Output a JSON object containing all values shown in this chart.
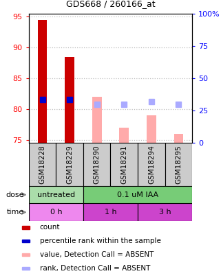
{
  "title": "GDS668 / 260166_at",
  "samples": [
    "GSM18228",
    "GSM18229",
    "GSM18290",
    "GSM18291",
    "GSM18294",
    "GSM18295"
  ],
  "ylim_left": [
    74.5,
    95.5
  ],
  "ylim_right": [
    0,
    100
  ],
  "yticks_left": [
    75,
    80,
    85,
    90,
    95
  ],
  "yticks_right": [
    0,
    25,
    50,
    75,
    100
  ],
  "ytick_labels_right": [
    "0",
    "25",
    "50",
    "75",
    "100%"
  ],
  "bar_values_present": [
    94.5,
    88.5
  ],
  "bar_values_present_indices": [
    0,
    1
  ],
  "bar_values_absent": [
    82.0,
    77.0,
    79.0,
    76.0
  ],
  "bar_values_absent_indices": [
    2,
    3,
    4,
    5
  ],
  "rank_values_present": [
    81.5,
    81.5
  ],
  "rank_values_present_indices": [
    0,
    1
  ],
  "rank_values_absent": [
    80.8,
    80.8,
    81.2,
    80.8
  ],
  "rank_values_absent_indices": [
    2,
    3,
    4,
    5
  ],
  "bar_bottom": 74.5,
  "color_bar_present": "#cc0000",
  "color_bar_absent": "#ffaaaa",
  "color_rank_present": "#0000cc",
  "color_rank_absent": "#aaaaff",
  "dose_labels": [
    {
      "text": "untreated",
      "start": 0,
      "end": 2,
      "color": "#aaddaa"
    },
    {
      "text": "0.1 uM IAA",
      "start": 2,
      "end": 6,
      "color": "#77cc77"
    }
  ],
  "time_labels": [
    {
      "text": "0 h",
      "start": 0,
      "end": 2,
      "color": "#ee88ee"
    },
    {
      "text": "1 h",
      "start": 2,
      "end": 4,
      "color": "#cc44cc"
    },
    {
      "text": "3 h",
      "start": 4,
      "end": 6,
      "color": "#cc44cc"
    }
  ],
  "legend_items": [
    {
      "label": "count",
      "color": "#cc0000"
    },
    {
      "label": "percentile rank within the sample",
      "color": "#0000cc"
    },
    {
      "label": "value, Detection Call = ABSENT",
      "color": "#ffaaaa"
    },
    {
      "label": "rank, Detection Call = ABSENT",
      "color": "#aaaaff"
    }
  ],
  "dose_arrow_label": "dose",
  "time_arrow_label": "time",
  "bar_width": 0.35,
  "rank_marker_size": 6,
  "sample_box_color": "#cccccc",
  "bg_color": "#ffffff"
}
